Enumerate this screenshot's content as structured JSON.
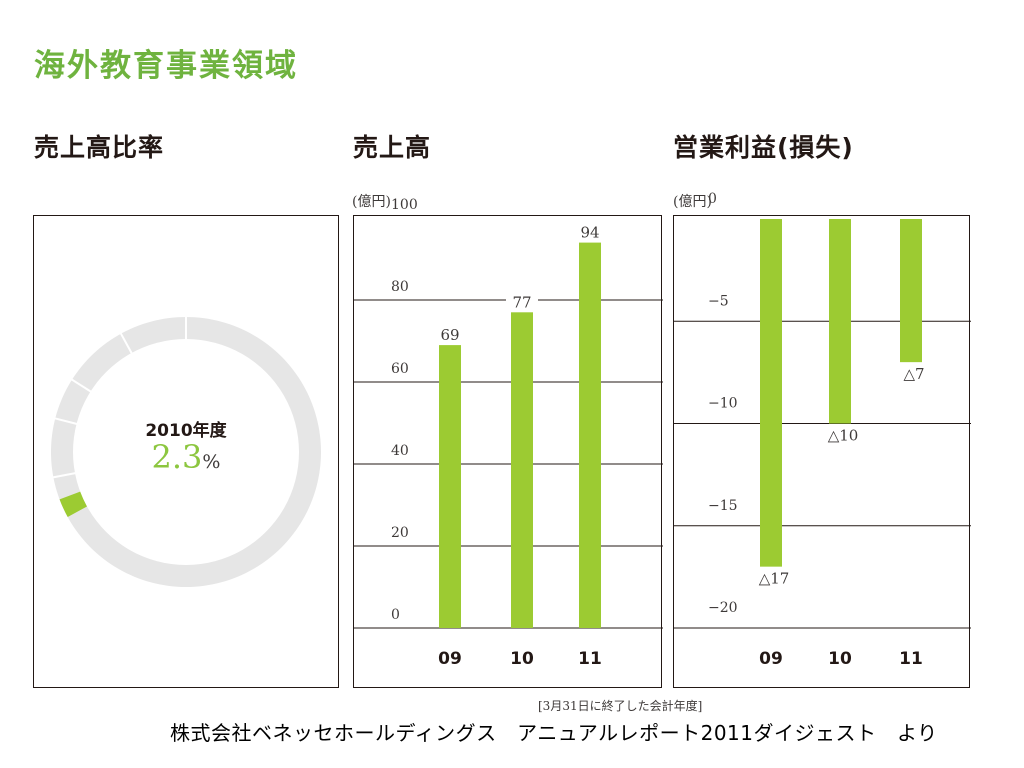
{
  "page": {
    "title": "海外教育事業領域",
    "fiscal_note": "[3月31日に終了した会計年度]",
    "credit": "株式会社ベネッセホールディングス　アニュアルレポート2011ダイジェスト　より"
  },
  "colors": {
    "title": "#6fb33f",
    "bar": "#9ccb32",
    "donut_rest": "#e6e6e6",
    "grid": "#231815"
  },
  "panels": {
    "share": {
      "title": "売上高比率"
    },
    "sales": {
      "title": "売上高",
      "unit": "(億円)"
    },
    "profit": {
      "title": "営業利益(損失)",
      "unit": "(億円)"
    }
  },
  "chart_data": [
    {
      "type": "pie",
      "title": "売上高比率",
      "center_label": "2010年度",
      "center_value": "2.3",
      "center_unit": "%",
      "highlight_share_percent": 2.3
    },
    {
      "type": "bar",
      "title": "売上高",
      "ylabel": "(億円)",
      "ylim": [
        0,
        100
      ],
      "yticks": [
        0,
        20,
        40,
        60,
        80,
        100
      ],
      "categories": [
        "09",
        "10",
        "11"
      ],
      "values": [
        69,
        77,
        94
      ],
      "data_labels": [
        "69",
        "77",
        "94"
      ],
      "grid": true
    },
    {
      "type": "bar",
      "title": "営業利益(損失)",
      "ylabel": "(億円)",
      "ylim": [
        -20,
        0
      ],
      "yticks": [
        0,
        -5,
        -10,
        -15,
        -20
      ],
      "ytick_labels": [
        "0",
        "−5",
        "−10",
        "−15",
        "−20"
      ],
      "categories": [
        "09",
        "10",
        "11"
      ],
      "values": [
        -17,
        -10,
        -7
      ],
      "data_labels": [
        "△17",
        "△10",
        "△7"
      ],
      "grid": true
    }
  ]
}
